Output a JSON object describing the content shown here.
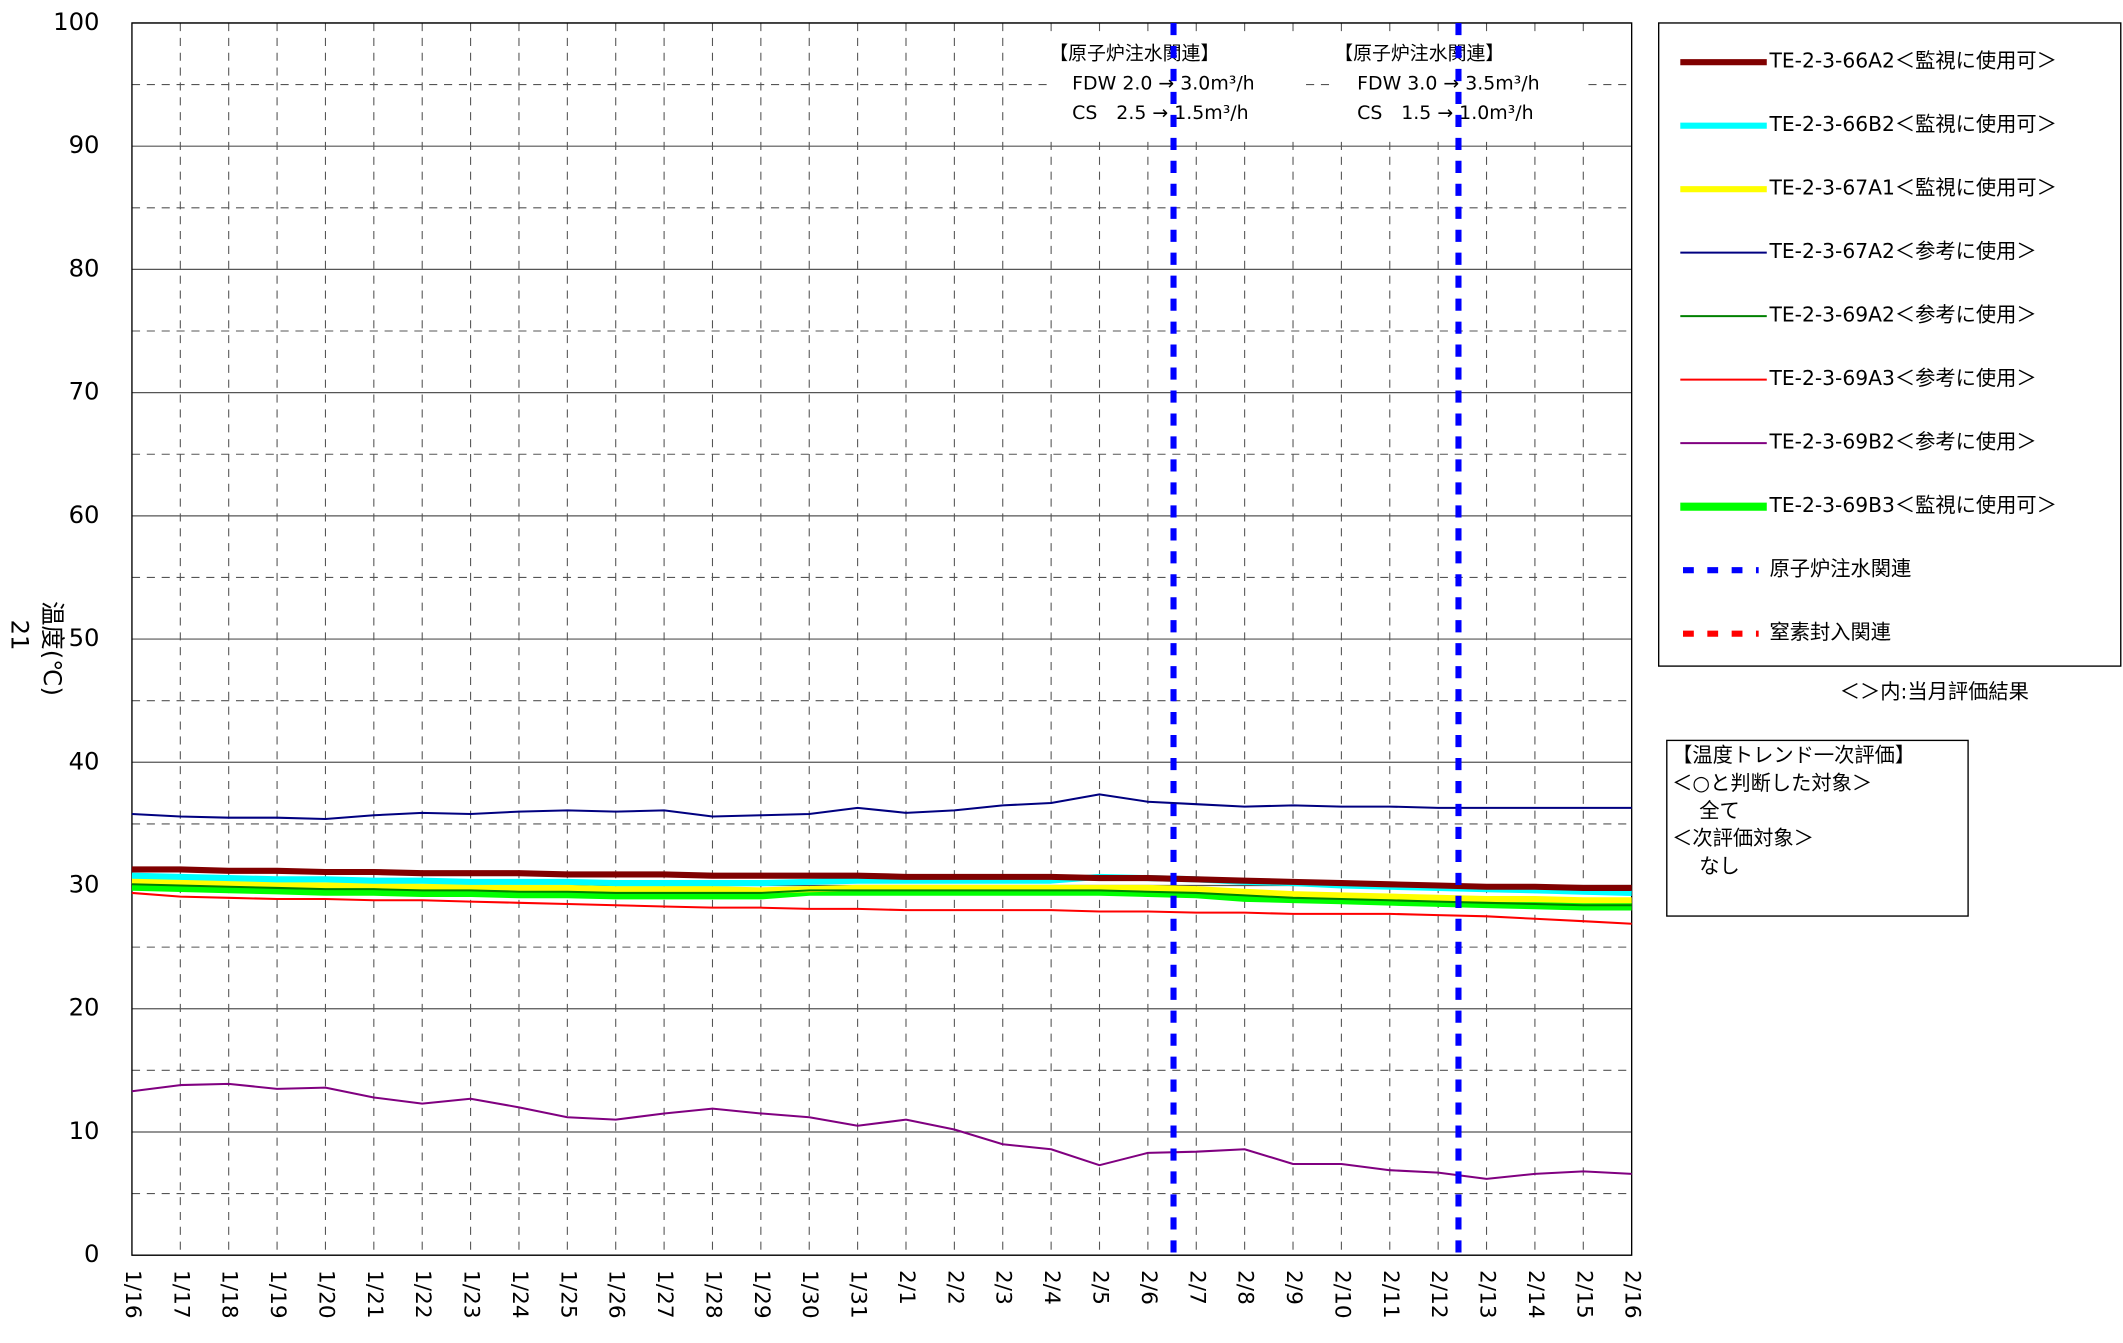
{
  "chart_data": {
    "type": "line",
    "y_label": "温度(℃)",
    "page_number": "21",
    "categories": [
      "1/16",
      "1/17",
      "1/18",
      "1/19",
      "1/20",
      "1/21",
      "1/22",
      "1/23",
      "1/24",
      "1/25",
      "1/26",
      "1/27",
      "1/28",
      "1/29",
      "1/30",
      "1/31",
      "2/1",
      "2/2",
      "2/3",
      "2/4",
      "2/5",
      "2/6",
      "2/7",
      "2/8",
      "2/9",
      "2/10",
      "2/11",
      "2/12",
      "2/13",
      "2/14",
      "2/15",
      "2/16"
    ],
    "ylim": [
      0,
      100
    ],
    "yticks": [
      0,
      10,
      20,
      30,
      40,
      50,
      60,
      70,
      80,
      90,
      100
    ],
    "minor_yticks": [
      5,
      15,
      25,
      35,
      45,
      55,
      65,
      75,
      85,
      95
    ],
    "grid": true,
    "legend": "right",
    "series": [
      {
        "name": "TE-2-3-66A2＜監視に使用可＞",
        "color": "#800000",
        "values": [
          31.3,
          31.3,
          31.2,
          31.2,
          31.1,
          31.1,
          31.0,
          31.0,
          31.0,
          30.9,
          30.9,
          30.9,
          30.8,
          30.8,
          30.8,
          30.8,
          30.7,
          30.7,
          30.7,
          30.7,
          30.6,
          30.6,
          30.5,
          30.4,
          30.3,
          30.2,
          30.1,
          30.0,
          29.9,
          29.9,
          29.8,
          29.8
        ]
      },
      {
        "name": "TE-2-3-66B2＜監視に使用可＞",
        "color": "#00ffff",
        "values": [
          30.8,
          30.7,
          30.6,
          30.5,
          30.5,
          30.4,
          30.4,
          30.3,
          30.3,
          30.3,
          30.2,
          30.2,
          30.2,
          30.2,
          30.3,
          30.4,
          30.4,
          30.4,
          30.4,
          30.4,
          30.7,
          30.6,
          30.5,
          30.3,
          30.2,
          30.0,
          29.9,
          29.8,
          29.7,
          29.6,
          29.5,
          29.4
        ]
      },
      {
        "name": "TE-2-3-67A1＜監視に使用可＞",
        "color": "#ffff00",
        "values": [
          30.4,
          30.3,
          30.2,
          30.1,
          30.0,
          30.0,
          29.9,
          29.9,
          29.8,
          29.8,
          29.7,
          29.7,
          29.7,
          29.6,
          29.7,
          29.8,
          29.8,
          29.8,
          29.8,
          29.8,
          29.8,
          29.8,
          29.7,
          29.5,
          29.3,
          29.2,
          29.1,
          29.0,
          28.9,
          28.9,
          28.8,
          28.8
        ]
      },
      {
        "name": "TE-2-3-67A2＜参考に使用＞",
        "color": "#000080",
        "values": [
          35.8,
          35.6,
          35.5,
          35.5,
          35.4,
          35.7,
          35.9,
          35.8,
          36.0,
          36.1,
          36.0,
          36.1,
          35.6,
          35.7,
          35.8,
          36.3,
          35.9,
          36.1,
          36.5,
          36.7,
          37.4,
          36.8,
          36.6,
          36.4,
          36.5,
          36.4,
          36.4,
          36.3,
          36.3,
          36.3,
          36.3,
          36.3
        ]
      },
      {
        "name": "TE-2-3-69A2＜参考に使用＞",
        "color": "#008000",
        "values": [
          30.1,
          30.0,
          29.9,
          29.8,
          29.7,
          29.7,
          29.6,
          29.6,
          29.5,
          29.5,
          29.4,
          29.4,
          29.4,
          29.4,
          29.6,
          29.6,
          29.6,
          29.6,
          29.6,
          29.6,
          29.6,
          29.5,
          29.4,
          29.2,
          29.0,
          28.9,
          28.8,
          28.7,
          28.6,
          28.5,
          28.4,
          28.4
        ]
      },
      {
        "name": "TE-2-3-69A3＜参考に使用＞",
        "color": "#ff0000",
        "values": [
          29.4,
          29.1,
          29.0,
          28.9,
          28.9,
          28.8,
          28.8,
          28.7,
          28.6,
          28.5,
          28.4,
          28.3,
          28.2,
          28.2,
          28.1,
          28.1,
          28.0,
          28.0,
          28.0,
          28.0,
          27.9,
          27.9,
          27.8,
          27.8,
          27.7,
          27.7,
          27.7,
          27.6,
          27.5,
          27.3,
          27.1,
          26.9
        ]
      },
      {
        "name": "TE-2-3-69B2＜参考に使用＞",
        "color": "#800080",
        "values": [
          13.3,
          13.8,
          13.9,
          13.5,
          13.6,
          12.8,
          12.3,
          12.7,
          12.0,
          11.2,
          11.0,
          11.5,
          11.9,
          11.5,
          11.2,
          10.5,
          11.0,
          10.2,
          9.0,
          8.6,
          7.3,
          8.3,
          8.4,
          8.6,
          7.4,
          7.4,
          6.9,
          6.7,
          6.2,
          6.6,
          6.8,
          6.6
        ]
      },
      {
        "name": "TE-2-3-69B3＜監視に使用可＞",
        "color": "#00ff00",
        "values": [
          29.9,
          29.8,
          29.7,
          29.6,
          29.5,
          29.5,
          29.4,
          29.4,
          29.3,
          29.3,
          29.2,
          29.2,
          29.2,
          29.2,
          29.5,
          29.5,
          29.5,
          29.5,
          29.5,
          29.5,
          29.5,
          29.4,
          29.3,
          29.0,
          28.9,
          28.8,
          28.7,
          28.6,
          28.5,
          28.4,
          28.3,
          28.3
        ]
      }
    ],
    "reference_lines": [
      {
        "name": "原子炉注水関連",
        "color": "#0000ff"
      },
      {
        "name": "窒素封入関連",
        "color": "#ff0000"
      }
    ],
    "events": [
      {
        "x_index": 21.53,
        "lines": [
          "【原子炉注水関連】",
          "FDW 2.0 → 3.0m³/h",
          "CS　2.5 → 1.5m³/h"
        ]
      },
      {
        "x_index": 27.42,
        "lines": [
          "【原子炉注水関連】",
          "FDW 3.0 → 3.5m³/h",
          "CS　1.5 → 1.0m³/h"
        ]
      }
    ],
    "legend_note": "＜＞内:当月評価結果",
    "evaluation_box": [
      "【温度トレンド一次評価】",
      "＜○と判断した対象＞",
      "全て",
      "＜次評価対象＞",
      "なし"
    ]
  }
}
